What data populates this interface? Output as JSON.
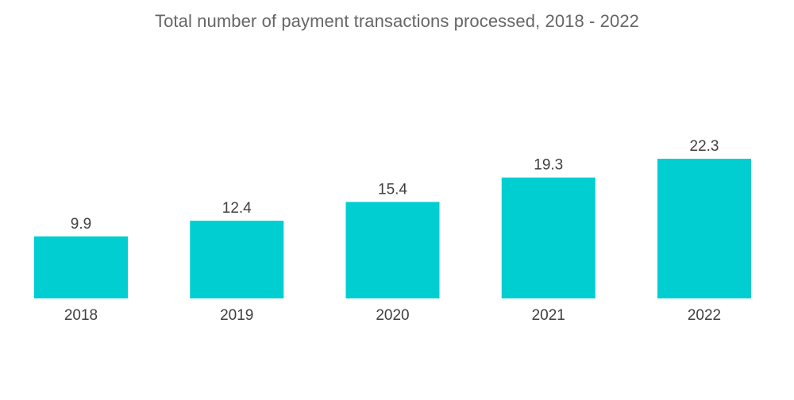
{
  "chart_data": {
    "type": "bar",
    "title": "Total number of payment transactions processed, 2018 - 2022",
    "xlabel": "",
    "ylabel": "",
    "categories": [
      "2018",
      "2019",
      "2020",
      "2021",
      "2022"
    ],
    "values": [
      9.9,
      12.4,
      15.4,
      19.3,
      22.3
    ],
    "ylim": [
      0,
      22.3
    ],
    "grid": false,
    "legend": "none",
    "data_labels": true,
    "colors": {
      "bar": "#00CED1",
      "title": "#666666",
      "text": "#404040"
    }
  }
}
